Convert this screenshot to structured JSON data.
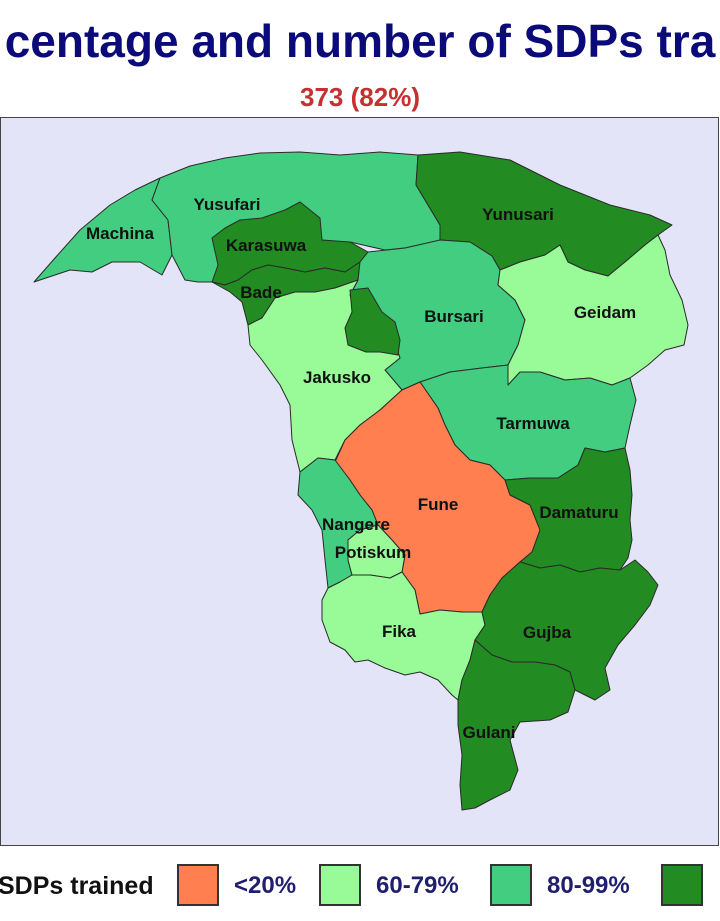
{
  "title": "centage and number of SDPs tra",
  "subtitle": "373 (82%)",
  "colors": {
    "below_20": "#ff7f50",
    "60_79": "#98fb98",
    "80_99": "#43cd80",
    "100": "#228b22",
    "background": "#e4e4f8",
    "title": "#0a0a78",
    "subtitle": "#c53030"
  },
  "regions": [
    {
      "name": "Machina",
      "category": "80-99"
    },
    {
      "name": "Yusufari",
      "category": "80-99"
    },
    {
      "name": "Karasuwa",
      "category": "100"
    },
    {
      "name": "Bade",
      "category": "100"
    },
    {
      "name": "Yunusari",
      "category": "100"
    },
    {
      "name": "Bursari",
      "category": "80-99"
    },
    {
      "name": "Geidam",
      "category": "60-79"
    },
    {
      "name": "Jakusko",
      "category": "60-79"
    },
    {
      "name": "Tarmuwa",
      "category": "80-99"
    },
    {
      "name": "Fune",
      "category": "<20"
    },
    {
      "name": "Damaturu",
      "category": "100"
    },
    {
      "name": "Nangere",
      "category": "80-99"
    },
    {
      "name": "Potiskum",
      "category": "60-79"
    },
    {
      "name": "Fika",
      "category": "60-79"
    },
    {
      "name": "Gujba",
      "category": "100"
    },
    {
      "name": "Gulani",
      "category": "100"
    }
  ],
  "legend": {
    "title": "SDPs trained",
    "items": [
      {
        "label": "<20%",
        "color": "#ff7f50"
      },
      {
        "label": "60-79%",
        "color": "#98fb98"
      },
      {
        "label": "80-99%",
        "color": "#43cd80"
      },
      {
        "label": "",
        "color": "#228b22"
      }
    ]
  }
}
